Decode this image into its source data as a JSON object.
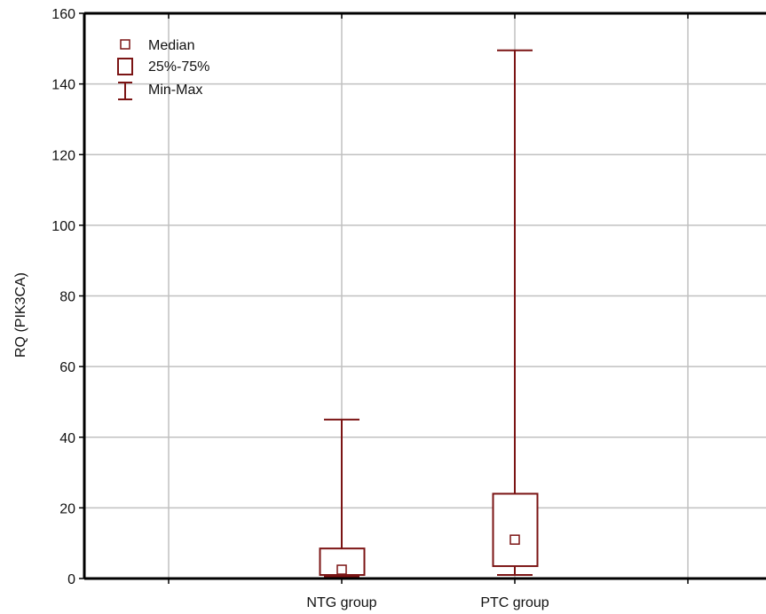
{
  "chart_data": {
    "type": "boxplot",
    "ylabel": "RQ (PIK3CA)",
    "xlabel": "",
    "ylim": [
      0,
      160
    ],
    "yticks": [
      0,
      20,
      40,
      60,
      80,
      100,
      120,
      140,
      160
    ],
    "grid": true,
    "categories": [
      "NTG group",
      "PTC group"
    ],
    "stats": [
      {
        "category": "NTG group",
        "median": 2.5,
        "q1": 1,
        "q3": 8.5,
        "min": 0.5,
        "max": 45
      },
      {
        "category": "PTC group",
        "median": 11,
        "q1": 3.5,
        "q3": 24,
        "min": 1,
        "max": 149.5
      }
    ],
    "legend": {
      "position": "top-left",
      "items": [
        "Median",
        "25%-75%",
        "Min-Max"
      ]
    },
    "colors": {
      "box": "#7b1414",
      "grid": "#c0c0c0",
      "axis": "#000000"
    }
  }
}
